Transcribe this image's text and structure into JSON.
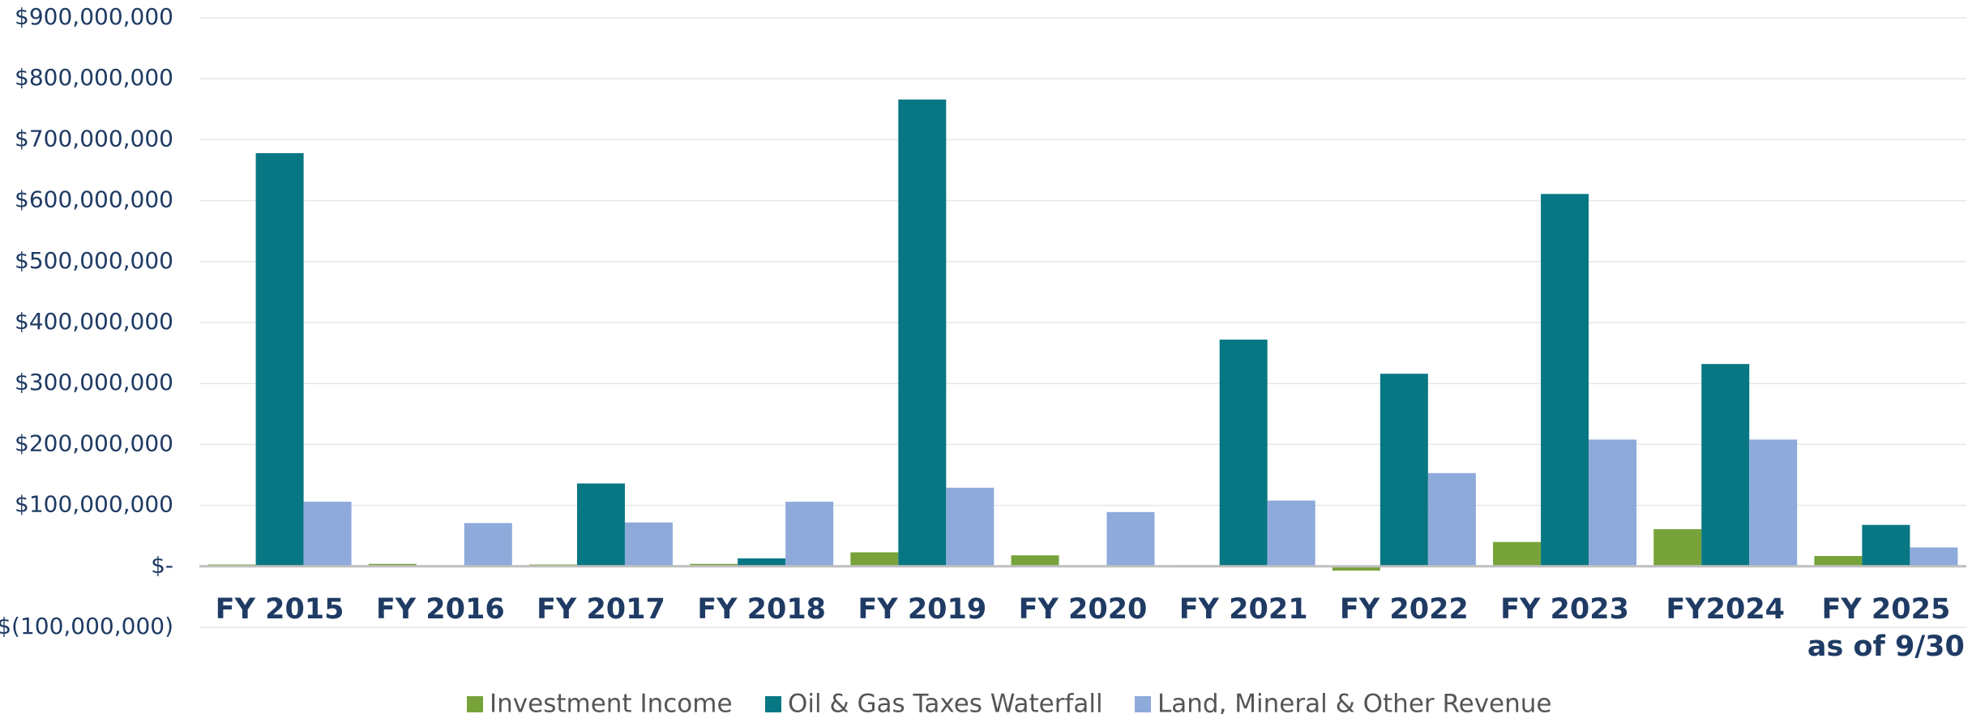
{
  "chart_data": {
    "type": "bar",
    "categories": [
      "FY 2015",
      "FY 2016",
      "FY 2017",
      "FY 2018",
      "FY 2019",
      "FY 2020",
      "FY 2021",
      "FY 2022",
      "FY 2023",
      "FY2024",
      "FY 2025 as of 9/30"
    ],
    "series": [
      {
        "name": "Investment Income",
        "color": "#77a33a",
        "values": [
          3000000,
          4000000,
          3000000,
          4000000,
          23000000,
          18000000,
          2000000,
          -7000000,
          40000000,
          61000000,
          17000000
        ]
      },
      {
        "name": "Oil & Gas Taxes Waterfall",
        "color": "#077783",
        "values": [
          678000000,
          0,
          136000000,
          13000000,
          766000000,
          0,
          372000000,
          316000000,
          611000000,
          332000000,
          68000000
        ]
      },
      {
        "name": "Land, Mineral & Other Revenue",
        "color": "#8eaadb",
        "values": [
          106000000,
          71000000,
          72000000,
          106000000,
          129000000,
          89000000,
          108000000,
          153000000,
          208000000,
          208000000,
          31000000
        ]
      }
    ],
    "ylim": [
      -100000000,
      900000000
    ],
    "yticks": [
      {
        "value": -100000000,
        "label": "$(100,000,000)"
      },
      {
        "value": 0,
        "label": "$-"
      },
      {
        "value": 100000000,
        "label": "$100,000,000"
      },
      {
        "value": 200000000,
        "label": "$200,000,000"
      },
      {
        "value": 300000000,
        "label": "$300,000,000"
      },
      {
        "value": 400000000,
        "label": "$400,000,000"
      },
      {
        "value": 500000000,
        "label": "$500,000,000"
      },
      {
        "value": 600000000,
        "label": "$600,000,000"
      },
      {
        "value": 700000000,
        "label": "$700,000,000"
      },
      {
        "value": 800000000,
        "label": "$800,000,000"
      },
      {
        "value": 900000000,
        "label": "$900,000,000"
      }
    ],
    "grid": true
  }
}
